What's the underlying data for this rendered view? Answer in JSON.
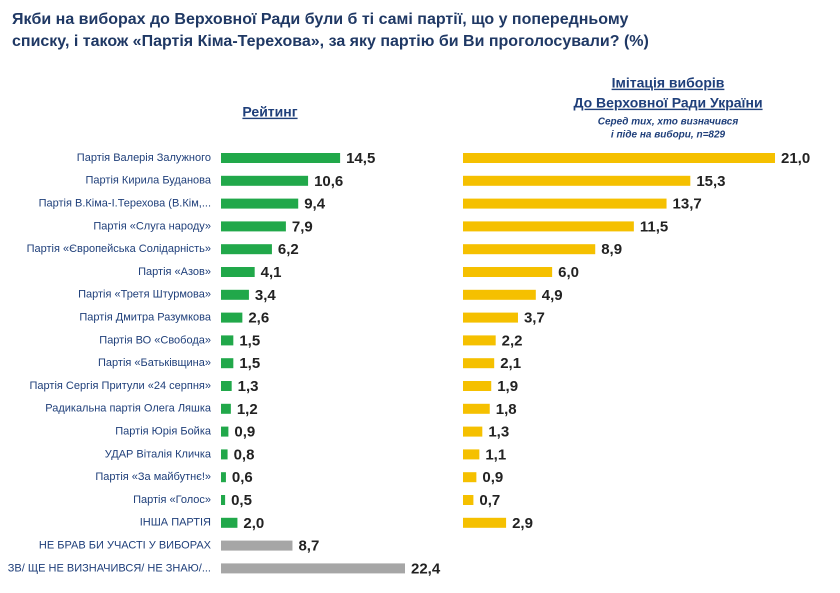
{
  "chart_data": {
    "type": "bar",
    "orientation": "horizontal",
    "title": [
      "Якби на виборах до Верховної Ради були б ті самі партії, що у попередньому",
      "списку, і також «Партія Кіма-Терехова», за яку партію би Ви проголосували? (%)"
    ],
    "categories": [
      "Партія Валерія Залужного",
      "Партія Кирила Буданова",
      "Партія В.Кіма-І.Терехова (В.Кім,...",
      "Партія «Слуга народу»",
      "Партія «Європейська Солідарність»",
      "Партія «Азов»",
      "Партія «Третя Штурмова»",
      "Партія Дмитра Разумкова",
      "Партія ВО «Свобода»",
      "Партія «Батьківщина»",
      "Партія Сергія Притули «24 серпня»",
      "Радикальна партія Олега Ляшка",
      "Партія Юрія Бойка",
      "УДАР Віталія Кличка",
      "Партія «За майбутнє!»",
      "Партія «Голос»",
      "ІНША ПАРТІЯ",
      "НЕ БРАВ БИ УЧАСТІ У ВИБОРАХ",
      "ЗВ/ ЩЕ НЕ ВИЗНАЧИВСЯ/ НЕ ЗНАЮ/..."
    ],
    "series": [
      {
        "name": "Рейтинг",
        "color": "#21a84a",
        "colors": [
          "#21a84a",
          "#21a84a",
          "#21a84a",
          "#21a84a",
          "#21a84a",
          "#21a84a",
          "#21a84a",
          "#21a84a",
          "#21a84a",
          "#21a84a",
          "#21a84a",
          "#21a84a",
          "#21a84a",
          "#21a84a",
          "#21a84a",
          "#21a84a",
          "#21a84a",
          "#a6a6a6",
          "#a6a6a6"
        ],
        "values": [
          14.5,
          10.6,
          9.4,
          7.9,
          6.2,
          4.1,
          3.4,
          2.6,
          1.5,
          1.5,
          1.3,
          1.2,
          0.9,
          0.8,
          0.6,
          0.5,
          2.0,
          8.7,
          22.4
        ],
        "value_labels": [
          "14,5",
          "10,6",
          "9,4",
          "7,9",
          "6,2",
          "4,1",
          "3,4",
          "2,6",
          "1,5",
          "1,5",
          "1,3",
          "1,2",
          "0,9",
          "0,8",
          "0,6",
          "0,5",
          "2,0",
          "8,7",
          "22,4"
        ]
      },
      {
        "name": [
          "Імітація виборів",
          "До Верховної Ради України"
        ],
        "subtitle": [
          "Серед тих, хто визначився",
          "і піде на вибори, n=829"
        ],
        "color": "#f5c000",
        "values": [
          21.0,
          15.3,
          13.7,
          11.5,
          8.9,
          6.0,
          4.9,
          3.7,
          2.2,
          2.1,
          1.9,
          1.8,
          1.3,
          1.1,
          0.9,
          0.7,
          2.9,
          null,
          null
        ],
        "value_labels": [
          "21,0",
          "15,3",
          "13,7",
          "11,5",
          "8,9",
          "6,0",
          "4,9",
          "3,7",
          "2,2",
          "2,1",
          "1,9",
          "1,8",
          "1,3",
          "1,1",
          "0,9",
          "0,7",
          "2,9",
          null,
          null
        ]
      }
    ]
  }
}
